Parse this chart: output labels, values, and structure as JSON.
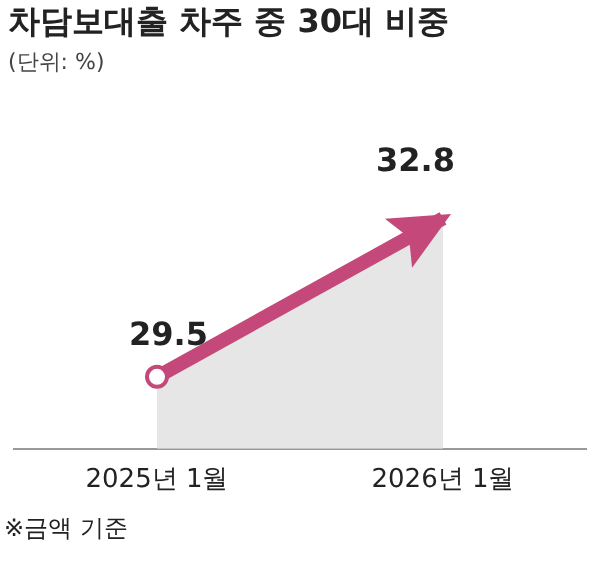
{
  "chart_data": {
    "type": "area",
    "title": "차담보대출 차주 중 30대 비중",
    "subtitle": "(단위: %)",
    "categories": [
      "2025년 1월",
      "2026년 1월"
    ],
    "series": [
      {
        "color": "#c4497a",
        "values": [
          29.5,
          32.8
        ]
      }
    ],
    "data_labels": true,
    "marker": "circle",
    "grid": false,
    "legend": false,
    "annotations": [
      "※금액 기준"
    ]
  }
}
